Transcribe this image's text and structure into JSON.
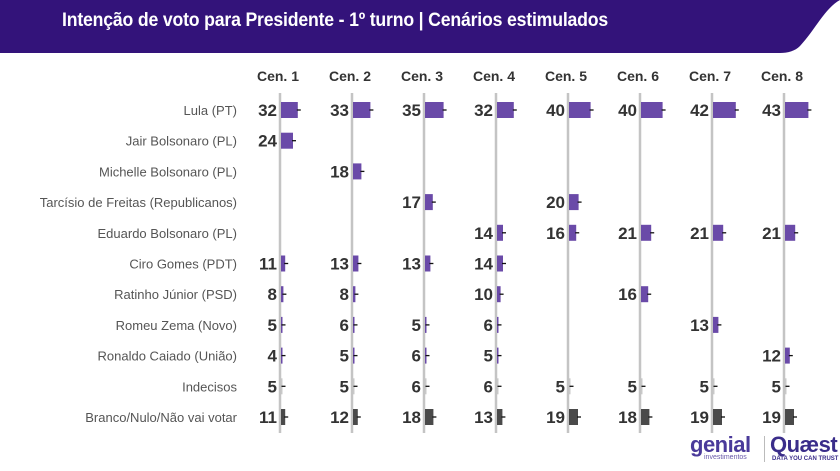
{
  "header": {
    "title": "Intenção de voto para Presidente - 1º turno | Cenários estimulados",
    "band_color": "#33137a"
  },
  "colors": {
    "candidate_bar": "#6a4aa8",
    "undecided_bar": "#c8c8c8",
    "blank_bar": "#4a4a4a",
    "axis_line": "#c4c4c4",
    "error_tick": "#111111"
  },
  "chart_data": {
    "type": "bar",
    "orientation": "horizontal",
    "title": "Intenção de voto para Presidente - 1º turno | Cenários estimulados",
    "xlabel": "",
    "ylabel": "",
    "unit": "%",
    "grid": false,
    "legend": "none",
    "scenarios": [
      "Cen. 1",
      "Cen. 2",
      "Cen. 3",
      "Cen. 4",
      "Cen. 5",
      "Cen. 6",
      "Cen. 7",
      "Cen. 8"
    ],
    "rows": [
      {
        "name": "Lula (PT)",
        "kind": "candidate",
        "values": [
          32,
          33,
          35,
          32,
          40,
          40,
          42,
          43
        ]
      },
      {
        "name": "Jair Bolsonaro (PL)",
        "kind": "candidate",
        "values": [
          24,
          null,
          null,
          null,
          null,
          null,
          null,
          null
        ]
      },
      {
        "name": "Michelle Bolsonaro (PL)",
        "kind": "candidate",
        "values": [
          null,
          18,
          null,
          null,
          null,
          null,
          null,
          null
        ]
      },
      {
        "name": "Tarcísio de Freitas (Republicanos)",
        "kind": "candidate",
        "values": [
          null,
          null,
          17,
          null,
          20,
          null,
          null,
          null
        ]
      },
      {
        "name": "Eduardo Bolsonaro (PL)",
        "kind": "candidate",
        "values": [
          null,
          null,
          null,
          14,
          16,
          21,
          21,
          21
        ]
      },
      {
        "name": "Ciro Gomes (PDT)",
        "kind": "candidate",
        "values": [
          11,
          13,
          13,
          14,
          null,
          null,
          null,
          null
        ]
      },
      {
        "name": "Ratinho Júnior (PSD)",
        "kind": "candidate",
        "values": [
          8,
          8,
          null,
          10,
          null,
          16,
          null,
          null
        ]
      },
      {
        "name": "Romeu Zema (Novo)",
        "kind": "candidate",
        "values": [
          5,
          6,
          5,
          6,
          null,
          null,
          13,
          null
        ]
      },
      {
        "name": "Ronaldo Caiado (União)",
        "kind": "candidate",
        "values": [
          4,
          5,
          6,
          5,
          null,
          null,
          null,
          12
        ]
      },
      {
        "name": "Indecisos",
        "kind": "undecided",
        "values": [
          5,
          5,
          6,
          6,
          5,
          5,
          5,
          5
        ]
      },
      {
        "name": "Branco/Nulo/Não vai votar",
        "kind": "blank",
        "values": [
          11,
          12,
          18,
          13,
          19,
          18,
          19,
          19
        ]
      }
    ]
  },
  "logos": {
    "genial": "genial",
    "genial_sub": "investimentos",
    "quaest": "Quæst",
    "quaest_sub": "DATA YOU CAN TRUST"
  }
}
